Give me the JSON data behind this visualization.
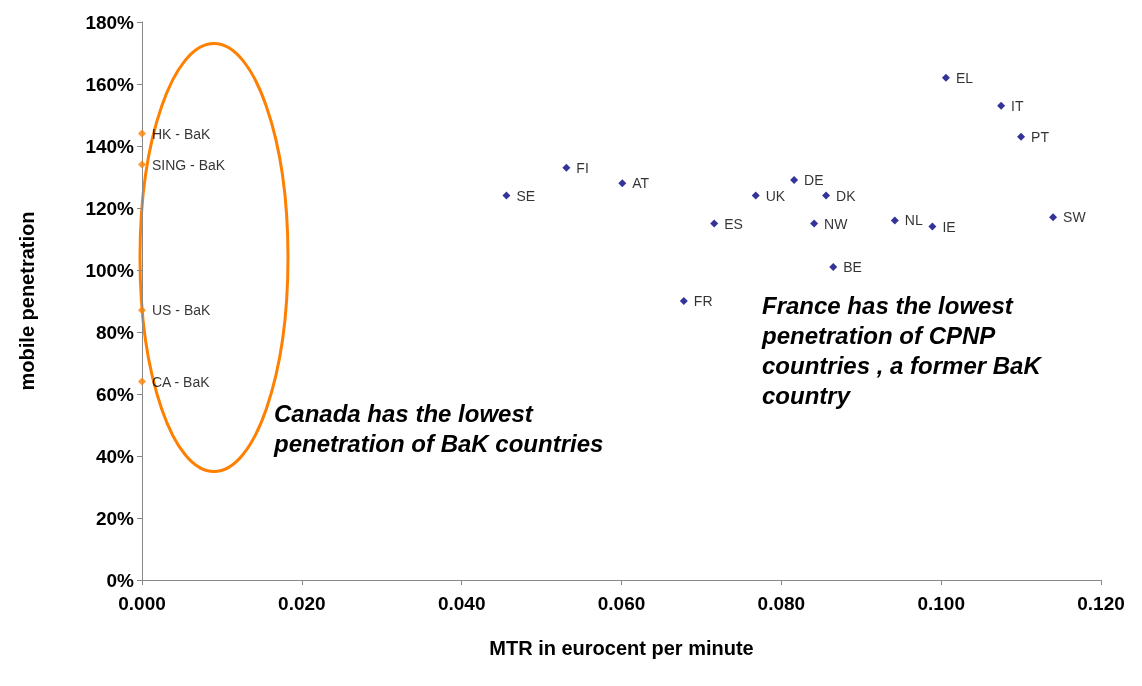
{
  "chart_data": {
    "type": "scatter",
    "xlabel": "MTR in eurocent per minute",
    "ylabel": "mobile penetration",
    "xlim": [
      0,
      0.12
    ],
    "ylim": [
      0,
      180
    ],
    "xticks": [
      {
        "value": 0,
        "label": "0.000"
      },
      {
        "value": 0.02,
        "label": "0.020"
      },
      {
        "value": 0.04,
        "label": "0.040"
      },
      {
        "value": 0.06,
        "label": "0.060"
      },
      {
        "value": 0.08,
        "label": "0.080"
      },
      {
        "value": 0.1,
        "label": "0.100"
      },
      {
        "value": 0.12,
        "label": "0.120"
      }
    ],
    "yticks": [
      {
        "value": 0,
        "label": "0%"
      },
      {
        "value": 20,
        "label": "20%"
      },
      {
        "value": 40,
        "label": "40%"
      },
      {
        "value": 60,
        "label": "60%"
      },
      {
        "value": 80,
        "label": "80%"
      },
      {
        "value": 100,
        "label": "100%"
      },
      {
        "value": 120,
        "label": "120%"
      },
      {
        "value": 140,
        "label": "140%"
      },
      {
        "value": 160,
        "label": "160%"
      },
      {
        "value": 180,
        "label": "180%"
      }
    ],
    "grid": false,
    "marker": "diamond",
    "series": [
      {
        "color": "#ff8000",
        "x": [
          0,
          0,
          0,
          0
        ],
        "values": [
          144,
          134,
          87,
          64
        ],
        "value_labels": [
          "HK - BaK",
          "SING - BaK",
          "US - BaK",
          "CA - BaK"
        ]
      },
      {
        "color": "#000080",
        "x": [
          0.0456,
          0.0531,
          0.0601,
          0.0716,
          0.0678,
          0.0768,
          0.0816,
          0.0856,
          0.0841,
          0.0865,
          0.0942,
          0.0989,
          0.1006,
          0.1075,
          0.11,
          0.114
        ],
        "values": [
          124,
          133,
          128,
          115,
          90,
          124,
          129,
          124,
          115,
          101,
          116,
          114,
          162,
          153,
          143,
          117
        ],
        "value_labels": [
          "SE",
          "FI",
          "AT",
          "ES",
          "FR",
          "UK",
          "DE",
          "DK",
          "NW",
          "BE",
          "NL",
          "IE",
          "EL",
          "IT",
          "PT",
          "SW"
        ]
      }
    ],
    "annotations": [
      "Canada has the lowest penetration of BaK countries",
      "France has the lowest penetration of CPNP countries , a former BaK country"
    ]
  }
}
